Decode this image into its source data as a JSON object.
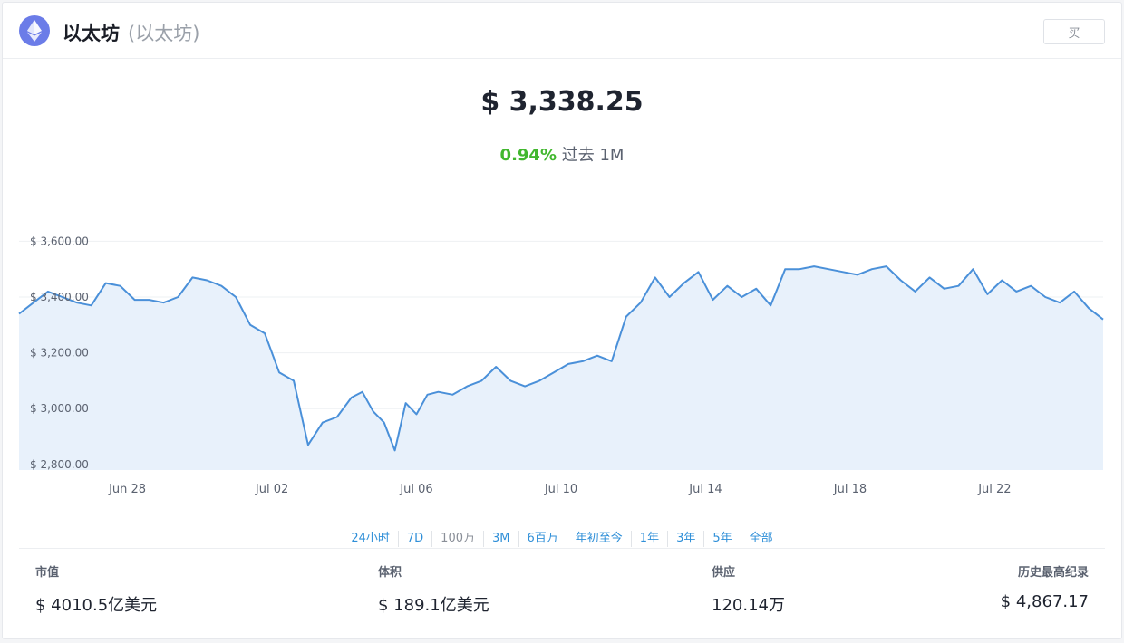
{
  "header": {
    "title": "以太坊",
    "subtitle": "(以太坊)",
    "buy_label": "买",
    "brand_color": "#6b7ce8",
    "logo_icon": "ethereum-icon"
  },
  "price": {
    "value": "$ 3,338.25",
    "change_pct": "0.94%",
    "change_period": "过去 1M",
    "change_color": "#41b72e"
  },
  "time_ranges": [
    "24小时",
    "7D",
    "100万",
    "3M",
    "6百万",
    "年初至今",
    "1年",
    "3年",
    "5年",
    "全部"
  ],
  "selected_range": "100万",
  "stats": [
    {
      "label": "市值",
      "value": "$ 4010.5亿美元"
    },
    {
      "label": "体积",
      "value": "$ 189.1亿美元"
    },
    {
      "label": "供应",
      "value": "120.14万"
    },
    {
      "label": "历史最高纪录",
      "value": "$ 4,867.17"
    }
  ],
  "chart_data": {
    "type": "area",
    "title": "",
    "xlabel": "",
    "ylabel": "",
    "x_tick_labels": [
      "Jun 28",
      "Jul 02",
      "Jul 06",
      "Jul 10",
      "Jul 14",
      "Jul 18",
      "Jul 22"
    ],
    "x_tick_days": [
      2,
      6,
      10,
      14,
      18,
      22,
      26
    ],
    "y_tick_labels": [
      "$ 2,800.00",
      "$ 3,000.00",
      "$ 3,200.00",
      "$ 3,400.00",
      "$ 3,600.00"
    ],
    "y_ticks": [
      2800,
      3000,
      3200,
      3400,
      3600
    ],
    "ylim": [
      2780,
      3650
    ],
    "xlim": [
      -1.0,
      29.0
    ],
    "line_color": "#4a90d9",
    "fill_color": "#e8f1fb",
    "grid": true,
    "series": [
      {
        "x": [
          -1.0,
          -0.6,
          -0.2,
          0.2,
          0.6,
          1.0,
          1.4,
          1.8,
          2.2,
          2.6,
          3.0,
          3.4,
          3.8,
          4.2,
          4.6,
          5.0,
          5.4,
          5.8,
          6.2,
          6.6,
          7.0,
          7.4,
          7.8,
          8.2,
          8.5,
          8.8,
          9.1,
          9.4,
          9.7,
          10.0,
          10.3,
          10.6,
          11.0,
          11.4,
          11.8,
          12.2,
          12.6,
          13.0,
          13.4,
          13.8,
          14.2,
          14.6,
          15.0,
          15.4,
          15.8,
          16.2,
          16.6,
          17.0,
          17.4,
          17.8,
          18.2,
          18.6,
          19.0,
          19.4,
          19.8,
          20.2,
          20.6,
          21.0,
          21.4,
          21.8,
          22.2,
          22.6,
          23.0,
          23.4,
          23.8,
          24.2,
          24.6,
          25.0,
          25.4,
          25.8,
          26.2,
          26.6,
          27.0,
          27.4,
          27.8,
          28.2,
          28.6,
          29.0
        ],
        "y": [
          3340,
          3380,
          3420,
          3400,
          3380,
          3370,
          3450,
          3440,
          3390,
          3390,
          3380,
          3400,
          3470,
          3460,
          3440,
          3400,
          3300,
          3270,
          3130,
          3100,
          2870,
          2950,
          2970,
          3040,
          3060,
          2990,
          2950,
          2850,
          3020,
          2980,
          3050,
          3060,
          3050,
          3080,
          3100,
          3150,
          3100,
          3080,
          3100,
          3130,
          3160,
          3170,
          3190,
          3170,
          3330,
          3380,
          3470,
          3400,
          3450,
          3490,
          3390,
          3440,
          3400,
          3430,
          3370,
          3500,
          3500,
          3510,
          3500,
          3490,
          3480,
          3500,
          3510,
          3460,
          3420,
          3470,
          3430,
          3440,
          3500,
          3410,
          3460,
          3420,
          3440,
          3400,
          3380,
          3420,
          3360,
          3320
        ]
      }
    ]
  }
}
